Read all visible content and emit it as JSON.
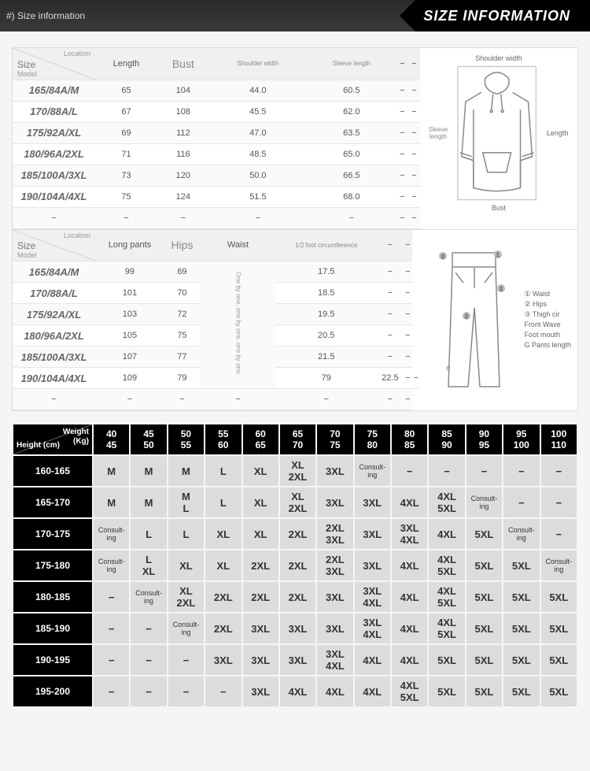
{
  "banner": {
    "left": "#) Size information",
    "right": "SIZE INFORMATION"
  },
  "tops": {
    "corner": {
      "location": "Location",
      "size": "Size",
      "model": "Model"
    },
    "headers": [
      "Length",
      "Bust",
      "Shoulder width",
      "Sleeve length",
      "−",
      "−"
    ],
    "header_styles": [
      "",
      "bigcol",
      "tiny",
      "tiny",
      "",
      ""
    ],
    "rows": [
      [
        "165/84A/M",
        "65",
        "104",
        "44.0",
        "60.5",
        "−",
        "−"
      ],
      [
        "170/88A/L",
        "67",
        "108",
        "45.5",
        "62.0",
        "−",
        "−"
      ],
      [
        "175/92A/XL",
        "69",
        "112",
        "47.0",
        "63.5",
        "−",
        "−"
      ],
      [
        "180/96A/2XL",
        "71",
        "116",
        "48.5",
        "65.0",
        "−",
        "−"
      ],
      [
        "185/100A/3XL",
        "73",
        "120",
        "50.0",
        "66.5",
        "−",
        "−"
      ],
      [
        "190/104A/4XL",
        "75",
        "124",
        "51.5",
        "68.0",
        "−",
        "−"
      ],
      [
        "−",
        "−",
        "−",
        "−",
        "−",
        "−",
        "−"
      ]
    ],
    "diagram": {
      "shoulder": "Shoulder width",
      "sleeve": "Sleeve length",
      "length": "Length",
      "bust": "Bust"
    }
  },
  "pants": {
    "corner": {
      "location": "Location",
      "size": "Size",
      "model": "Model"
    },
    "headers": [
      "Long pants",
      "Hips",
      "Waist",
      "1/2 foot circumference",
      "−",
      "−"
    ],
    "header_styles": [
      "",
      "bigcol",
      "",
      "tiny",
      "",
      ""
    ],
    "rows": [
      [
        "165/84A/M",
        "99",
        "69",
        "*",
        "17.5",
        "−",
        "−"
      ],
      [
        "170/88A/L",
        "101",
        "70",
        "*",
        "18.5",
        "−",
        "−"
      ],
      [
        "175/92A/XL",
        "103",
        "72",
        "*",
        "19.5",
        "−",
        "−"
      ],
      [
        "180/96A/2XL",
        "105",
        "75",
        "*",
        "20.5",
        "−",
        "−"
      ],
      [
        "185/100A/3XL",
        "107",
        "77",
        "*",
        "21.5",
        "−",
        "−"
      ],
      [
        "190/104A/4XL",
        "109",
        "79",
        "79",
        "22.5",
        "−",
        "−"
      ],
      [
        "−",
        "−",
        "−",
        "−",
        "−",
        "−",
        "−"
      ]
    ],
    "waist_vtext": "One by one, one by one, one by one.",
    "diagram_labels": [
      "① Waist",
      "② Hips",
      "③ Thigh cir",
      "Front Wave",
      "Foot mouth",
      "G Pants length"
    ],
    "hash": "#"
  },
  "matrix": {
    "corner": {
      "weight": "Weight\n(Kg)",
      "height": "Height (cm)"
    },
    "weight_cols": [
      "40\n45",
      "45\n50",
      "50\n55",
      "55\n60",
      "60\n65",
      "65\n70",
      "70\n75",
      "75\n80",
      "80\n85",
      "85\n90",
      "90\n95",
      "95\n100",
      "100\n110"
    ],
    "height_rows": [
      "160-165",
      "165-170",
      "170-175",
      "175-180",
      "180-185",
      "185-190",
      "190-195",
      "195-200"
    ],
    "cells": [
      [
        "M",
        "M",
        "M",
        "L",
        "XL",
        "XL\n2XL",
        "3XL",
        "Consult-\ning",
        "−",
        "−",
        "−",
        "−",
        "−"
      ],
      [
        "M",
        "M",
        "M\nL",
        "L",
        "XL",
        "XL\n2XL",
        "3XL",
        "3XL",
        "4XL",
        "4XL\n5XL",
        "Consult-\ning",
        "−",
        "−"
      ],
      [
        "Consult-\ning",
        "L",
        "L",
        "XL",
        "XL",
        "2XL",
        "2XL\n3XL",
        "3XL",
        "3XL\n4XL",
        "4XL",
        "5XL",
        "Consult-\ning",
        "−"
      ],
      [
        "Consult-\ning",
        "L\nXL",
        "XL",
        "XL",
        "2XL",
        "2XL",
        "2XL\n3XL",
        "3XL",
        "4XL",
        "4XL\n5XL",
        "5XL",
        "5XL",
        "Consult-\ning"
      ],
      [
        "−",
        "Consult-\ning",
        "XL\n2XL",
        "2XL",
        "2XL",
        "2XL",
        "3XL",
        "3XL\n4XL",
        "4XL",
        "4XL\n5XL",
        "5XL",
        "5XL",
        "5XL"
      ],
      [
        "−",
        "−",
        "Consult-\ning",
        "2XL",
        "3XL",
        "3XL",
        "3XL",
        "3XL\n4XL",
        "4XL",
        "4XL\n5XL",
        "5XL",
        "5XL",
        "5XL"
      ],
      [
        "−",
        "−",
        "−",
        "3XL",
        "3XL",
        "3XL",
        "3XL\n4XL",
        "4XL",
        "4XL",
        "5XL",
        "5XL",
        "5XL",
        "5XL"
      ],
      [
        "−",
        "−",
        "−",
        "−",
        "3XL",
        "4XL",
        "4XL",
        "4XL",
        "4XL\n5XL",
        "5XL",
        "5XL",
        "5XL",
        "5XL"
      ]
    ]
  }
}
